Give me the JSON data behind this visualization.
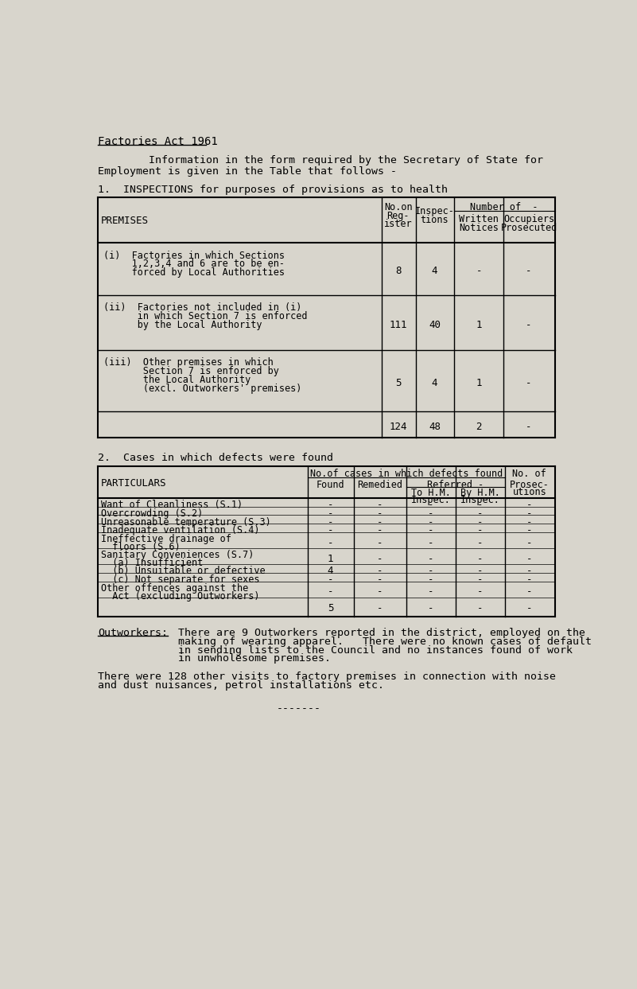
{
  "bg_color": "#d8d5cc",
  "title": "Factories Act 1961",
  "intro_line1": "        Information in the form required by the Secretary of State for",
  "intro_line2": "Employment is given in the Table that follows -",
  "section1_title": "1.  INSPECTIONS for purposes of provisions as to health",
  "table1_header_col0": "PREMISES",
  "table1_header_numberof": "Number of  -",
  "table1_rows": [
    {
      "label": "(i)  Factories in which Sections\n     1,2,3,4 and 6 are to be en-\n     forced by Local Authorities",
      "reg": "8",
      "insp": "4",
      "written": "-",
      "occ": "-"
    },
    {
      "label": "(ii)  Factories not included in (i)\n      in which Section 7 is enforced\n      by the Local Authority",
      "reg": "111",
      "insp": "40",
      "written": "1",
      "occ": "-"
    },
    {
      "label": "(iii)  Other premises in which\n       Section 7 is enforced by\n       the Local Authority\n       (excl. Outworkers' premises)",
      "reg": "5",
      "insp": "4",
      "written": "1",
      "occ": "-"
    },
    {
      "label": "",
      "reg": "124",
      "insp": "48",
      "written": "2",
      "occ": "-"
    }
  ],
  "section2_title": "2.  Cases in which defects were found",
  "table2_header_noofcases": "No.of cases in which defects found",
  "table2_header_referred": "Referred -",
  "table2_rows": [
    {
      "label": "Want of Cleanliness (S.1)",
      "found": "-",
      "remedied": "-",
      "tohm": "-",
      "byhm": "-",
      "prosec": "-"
    },
    {
      "label": "Overcrowding (S.2)",
      "found": "-",
      "remedied": "-",
      "tohm": "-",
      "byhm": "-",
      "prosec": "-"
    },
    {
      "label": "Unreasonable temperature (S.3)",
      "found": "-",
      "remedied": "-",
      "tohm": "-",
      "byhm": "-",
      "prosec": "-"
    },
    {
      "label": "Inadequate ventilation (S.4)",
      "found": "-",
      "remedied": "-",
      "tohm": "-",
      "byhm": "-",
      "prosec": "-"
    },
    {
      "label": "Ineffective drainage of\n  floors (S.6)",
      "found": "-",
      "remedied": "-",
      "tohm": "-",
      "byhm": "-",
      "prosec": "-"
    },
    {
      "label": "Sanitary Conveniences (S.7)\n  (a) Insufficient",
      "found": "1",
      "remedied": "-",
      "tohm": "-",
      "byhm": "-",
      "prosec": "-"
    },
    {
      "label": "  (b) Unsuitable or defective",
      "found": "4",
      "remedied": "-",
      "tohm": "-",
      "byhm": "-",
      "prosec": "-"
    },
    {
      "label": "  (c) Not separate for sexes",
      "found": "-",
      "remedied": "-",
      "tohm": "-",
      "byhm": "-",
      "prosec": "-"
    },
    {
      "label": "Other offences against the\n  Act (excluding Outworkers)",
      "found": "-",
      "remedied": "-",
      "tohm": "-",
      "byhm": "-",
      "prosec": "-"
    },
    {
      "label": "",
      "found": "5",
      "remedied": "-",
      "tohm": "-",
      "byhm": "-",
      "prosec": "-"
    }
  ],
  "outworkers_label": "Outworkers:",
  "outworkers_text1": "There are 9 Outworkers reported in the district, employed on the",
  "outworkers_text2": "making of wearing apparel.   There were no known cases of default",
  "outworkers_text3": "in sending lists to the Council and no instances found of work",
  "outworkers_text4": "in unwholesome premises.",
  "footer_text1": "There were 128 other visits to factory premises in connection with noise",
  "footer_text2": "and dust nuisances, petrol installations etc.",
  "dashes": "-------"
}
